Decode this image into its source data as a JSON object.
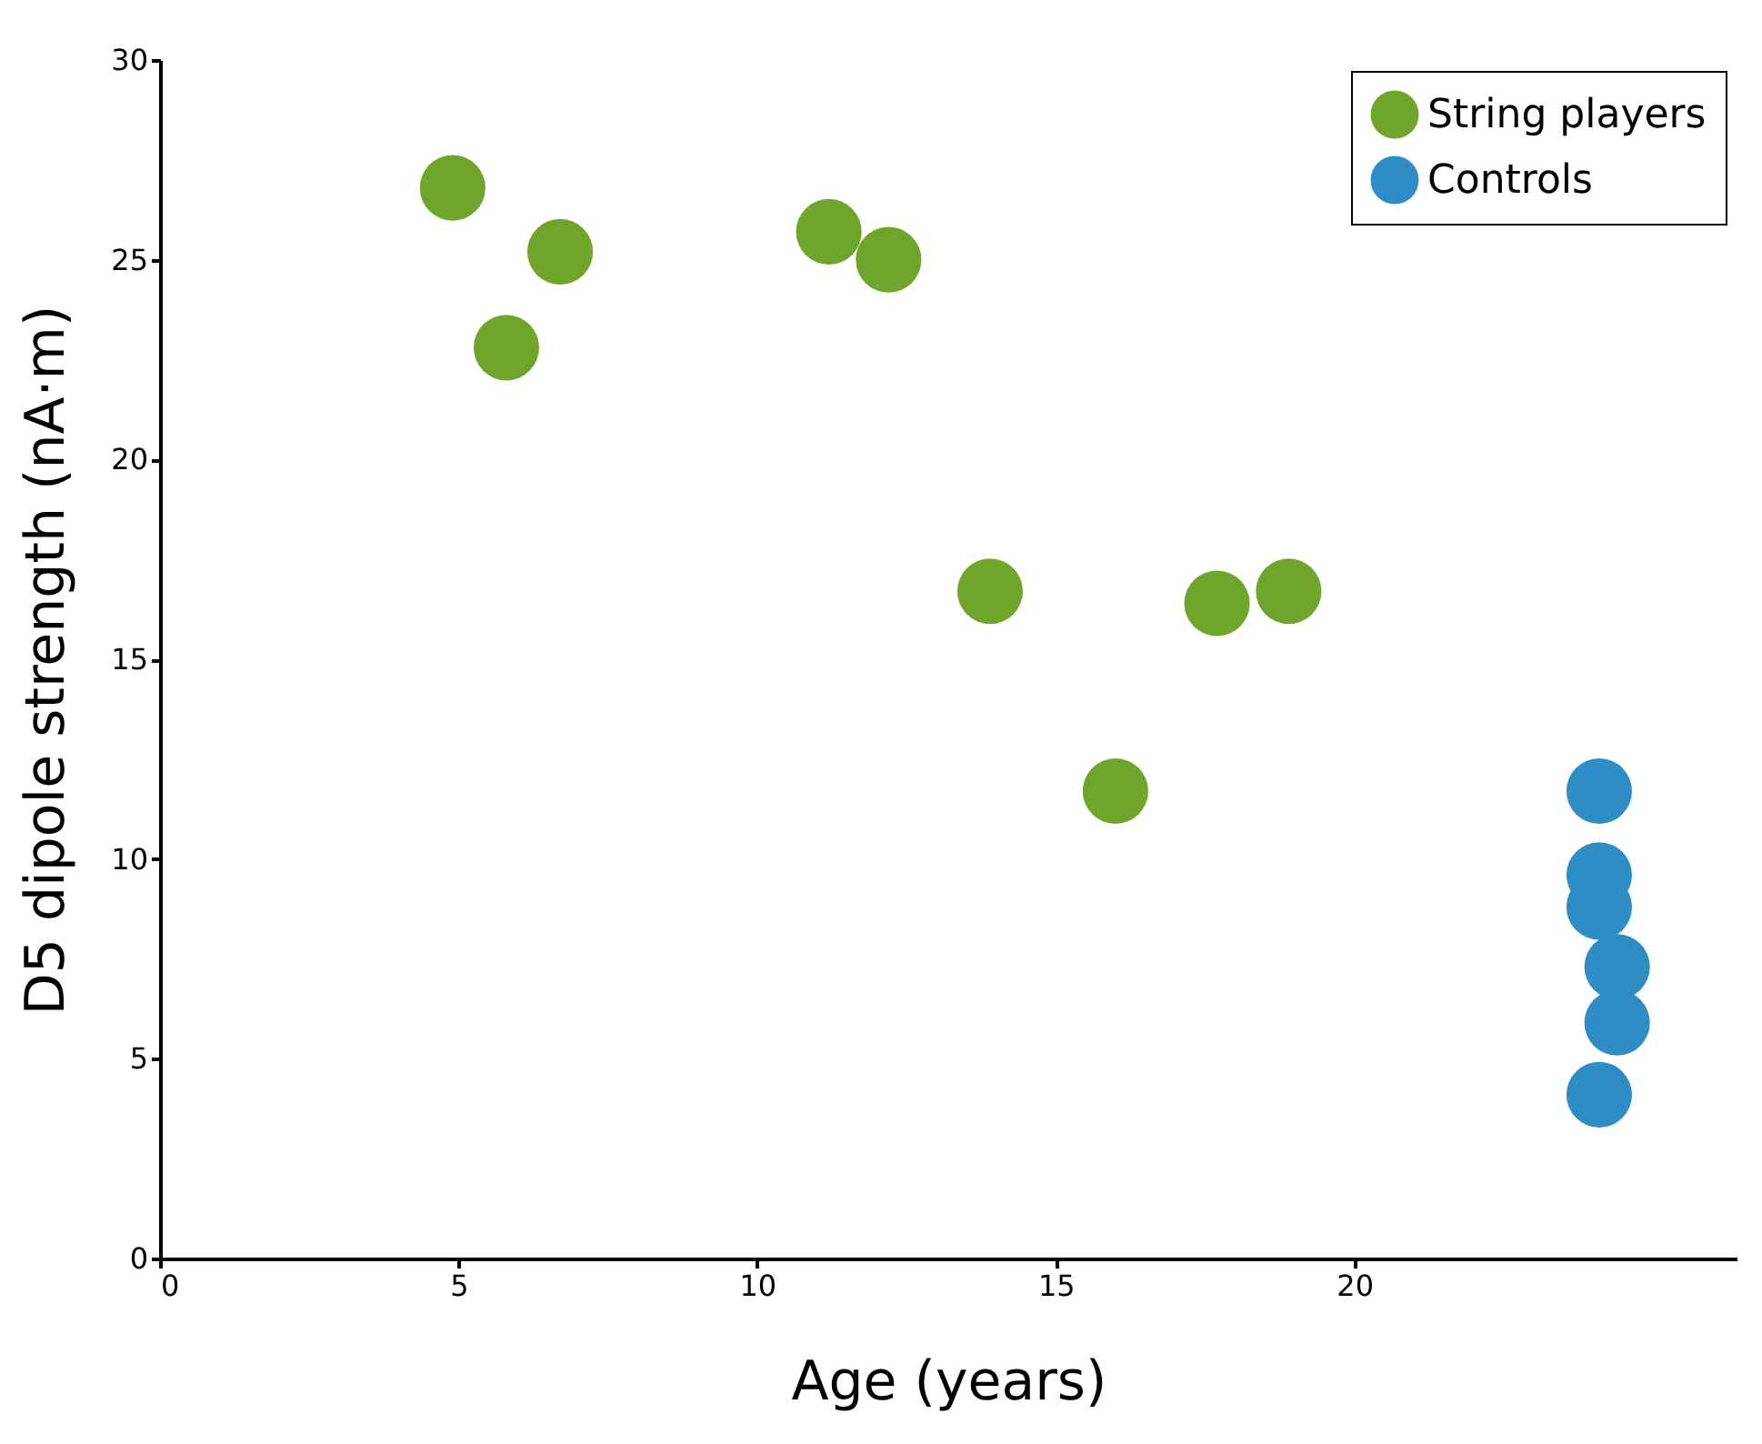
{
  "chart_data": {
    "type": "scatter",
    "xlabel": "Age (years)",
    "ylabel": "D5 dipole strength (nA·m)",
    "xlim": [
      0,
      26.4
    ],
    "xticks": [
      0,
      5,
      10,
      15,
      20
    ],
    "ylim": [
      0,
      30
    ],
    "yticks": [
      0,
      5,
      10,
      15,
      20,
      25,
      30
    ],
    "grid": false,
    "legend": "top right",
    "marker": "circle",
    "series": [
      {
        "name": "String players",
        "color": "#6fa52a",
        "x": [
          4.9,
          5.8,
          6.7,
          11.2,
          12.2,
          13.9,
          16.0,
          17.7,
          18.9
        ],
        "values": [
          26.8,
          22.8,
          25.2,
          25.7,
          25.0,
          16.7,
          11.7,
          16.4,
          16.7
        ]
      },
      {
        "name": "Controls",
        "color": "#2f8dc6",
        "x": [
          24.1,
          24.1,
          24.1,
          24.4,
          24.4,
          24.1
        ],
        "values": [
          11.7,
          9.6,
          8.8,
          7.3,
          5.9,
          4.1
        ]
      }
    ]
  }
}
